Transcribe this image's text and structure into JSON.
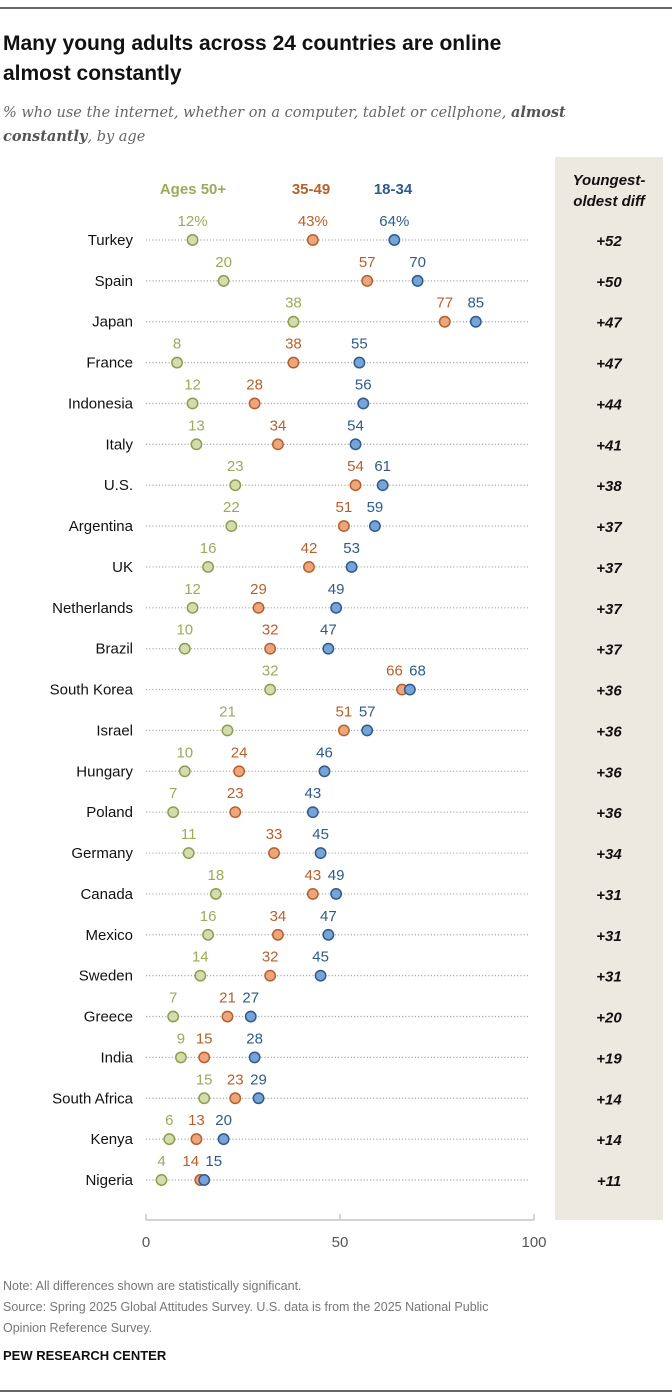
{
  "chart_data": {
    "type": "dot",
    "title": "Many young adults across 24 countries are online almost constantly",
    "title_lines": [
      "Many young adults across 24 countries are online",
      "almost constantly"
    ],
    "subtitle_lines": [
      {
        "normal": "% who use the internet, whether on a computer, tablet or cellphone, ",
        "bold": "almost"
      },
      {
        "bold": "constantly",
        "normal": ", by age"
      }
    ],
    "diff_header": [
      "Youngest-",
      "oldest diff"
    ],
    "xlim": [
      0,
      100
    ],
    "xticks": [
      0,
      50,
      100
    ],
    "grid": false,
    "legend_placement": "top",
    "first_label_suffix": "%",
    "series": [
      {
        "name": "Ages 50+",
        "color": "#9aab5a",
        "fill": "#d3dcaf",
        "stroke": "#8c9f4c"
      },
      {
        "name": "35-49",
        "color": "#b8602c",
        "fill": "#eba67e",
        "stroke": "#b8602c"
      },
      {
        "name": "18-34",
        "color": "#2e5b8c",
        "fill": "#76a3d8",
        "stroke": "#2e5b8c"
      }
    ],
    "categories": [
      "Turkey",
      "Spain",
      "Japan",
      "France",
      "Indonesia",
      "Italy",
      "U.S.",
      "Argentina",
      "UK",
      "Netherlands",
      "Brazil",
      "South Korea",
      "Israel",
      "Hungary",
      "Poland",
      "Germany",
      "Canada",
      "Mexico",
      "Sweden",
      "Greece",
      "India",
      "South Africa",
      "Kenya",
      "Nigeria"
    ],
    "values": {
      "Ages 50+": [
        12,
        20,
        38,
        8,
        12,
        13,
        23,
        22,
        16,
        12,
        10,
        32,
        21,
        10,
        7,
        11,
        18,
        16,
        14,
        7,
        9,
        15,
        6,
        4
      ],
      "35-49": [
        43,
        57,
        77,
        38,
        28,
        34,
        54,
        51,
        42,
        29,
        32,
        66,
        51,
        24,
        23,
        33,
        43,
        34,
        32,
        21,
        15,
        23,
        13,
        14
      ],
      "18-34": [
        64,
        70,
        85,
        55,
        56,
        54,
        61,
        59,
        53,
        49,
        47,
        68,
        57,
        46,
        43,
        45,
        49,
        47,
        45,
        27,
        28,
        29,
        20,
        15
      ]
    },
    "diffs": [
      "+52",
      "+50",
      "+47",
      "+47",
      "+44",
      "+41",
      "+38",
      "+37",
      "+37",
      "+37",
      "+37",
      "+36",
      "+36",
      "+36",
      "+36",
      "+34",
      "+31",
      "+31",
      "+31",
      "+20",
      "+19",
      "+14",
      "+14",
      "+11"
    ]
  },
  "colors": {
    "panel": "#ece9e1",
    "dots": "#aaaaaa",
    "rule": "#333333"
  },
  "footer": {
    "note": "Note: All differences shown are statistically significant.",
    "source_lines": [
      "Source: Spring 2025 Global Attitudes Survey. U.S. data is from the 2025 National Public",
      "Opinion Reference Survey."
    ],
    "brand": "PEW RESEARCH CENTER"
  }
}
